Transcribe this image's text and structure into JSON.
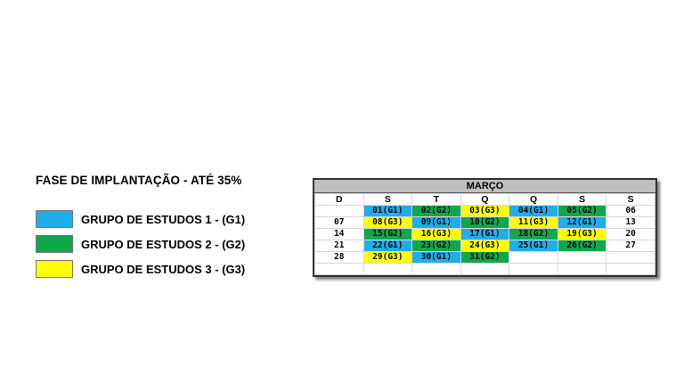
{
  "legend": {
    "title": "FASE DE IMPLANTAÇÃO - ATÉ 35%",
    "items": [
      {
        "label": "GRUPO DE ESTUDOS 1 - (G1)",
        "color": "#1faee8"
      },
      {
        "label": "GRUPO DE ESTUDOS 2 - (G2)",
        "color": "#11a84b"
      },
      {
        "label": "GRUPO DE ESTUDOS 3 - (G3)",
        "color": "#ffff00"
      }
    ]
  },
  "calendar": {
    "month": "MARÇO",
    "weekdays": [
      "D",
      "S",
      "T",
      "Q",
      "Q",
      "S",
      "S"
    ],
    "weeks": [
      [
        {
          "text": ""
        },
        {
          "text": "01(G1)",
          "group": "g1"
        },
        {
          "text": "02(G2)",
          "group": "g2"
        },
        {
          "text": "03(G3)",
          "group": "g3"
        },
        {
          "text": "04(G1)",
          "group": "g1"
        },
        {
          "text": "05(G2)",
          "group": "g2"
        },
        {
          "text": "06"
        }
      ],
      [
        {
          "text": "07"
        },
        {
          "text": "08(G3)",
          "group": "g3"
        },
        {
          "text": "09(G1)",
          "group": "g1"
        },
        {
          "text": "10(G2)",
          "group": "g2"
        },
        {
          "text": "11(G3)",
          "group": "g3"
        },
        {
          "text": "12(G1)",
          "group": "g1"
        },
        {
          "text": "13"
        }
      ],
      [
        {
          "text": "14"
        },
        {
          "text": "15(G2)",
          "group": "g2"
        },
        {
          "text": "16(G3)",
          "group": "g3"
        },
        {
          "text": "17(G1)",
          "group": "g1"
        },
        {
          "text": "18(G2)",
          "group": "g2"
        },
        {
          "text": "19(G3)",
          "group": "g3"
        },
        {
          "text": "20"
        }
      ],
      [
        {
          "text": "21"
        },
        {
          "text": "22(G1)",
          "group": "g1"
        },
        {
          "text": "23(G2)",
          "group": "g2"
        },
        {
          "text": "24(G3)",
          "group": "g3"
        },
        {
          "text": "25(G1)",
          "group": "g1"
        },
        {
          "text": "26(G2)",
          "group": "g2"
        },
        {
          "text": "27"
        }
      ],
      [
        {
          "text": "28"
        },
        {
          "text": "29(G3)",
          "group": "g3"
        },
        {
          "text": "30(G1)",
          "group": "g1"
        },
        {
          "text": "31(G2)",
          "group": "g2"
        },
        {
          "text": ""
        },
        {
          "text": ""
        },
        {
          "text": ""
        }
      ],
      [
        {
          "text": ""
        },
        {
          "text": ""
        },
        {
          "text": ""
        },
        {
          "text": ""
        },
        {
          "text": ""
        },
        {
          "text": ""
        },
        {
          "text": ""
        }
      ]
    ]
  }
}
